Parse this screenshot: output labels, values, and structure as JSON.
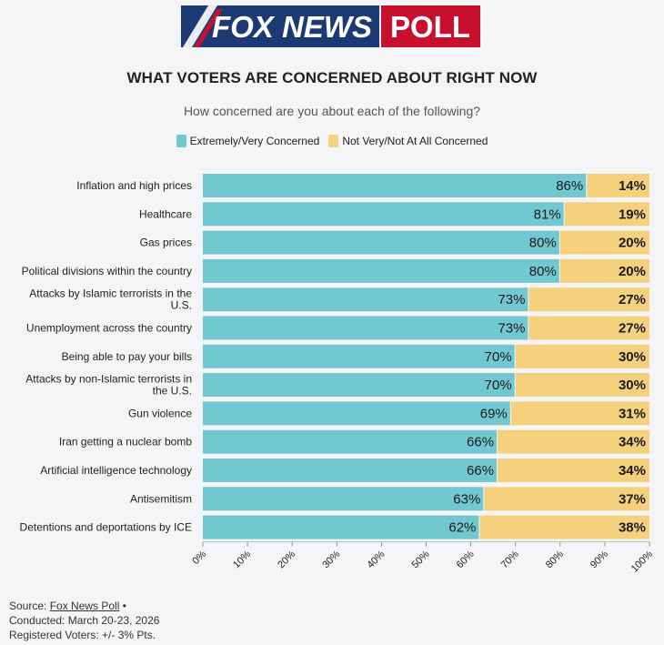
{
  "header": {
    "logo_left": "FOX NEWS",
    "logo_right": "POLL",
    "title": "WHAT VOTERS ARE CONCERNED ABOUT RIGHT NOW",
    "subtitle": "How concerned are you about each of the following?"
  },
  "legend": [
    {
      "label": "Extremely/Very Concerned",
      "color": "#72c8d1"
    },
    {
      "label": "Not Very/Not At All Concerned",
      "color": "#f5d17e"
    }
  ],
  "chart_data": {
    "type": "bar",
    "orientation": "horizontal",
    "stacked": true,
    "categories": [
      [
        "Inflation and high prices"
      ],
      [
        "Healthcare"
      ],
      [
        "Gas prices"
      ],
      [
        "Political divisions within the country"
      ],
      [
        "Attacks by Islamic terrorists in the",
        "U.S."
      ],
      [
        "Unemployment across the country"
      ],
      [
        "Being able to pay your bills"
      ],
      [
        "Attacks by non-Islamic terrorists in",
        "the U.S."
      ],
      [
        "Gun violence"
      ],
      [
        "Iran getting a nuclear bomb"
      ],
      [
        "Artificial intelligence technology"
      ],
      [
        "Antisemitism"
      ],
      [
        "Detentions and deportations by ICE"
      ]
    ],
    "series": [
      {
        "name": "Extremely/Very Concerned",
        "color": "#72c8d1",
        "values": [
          86,
          81,
          80,
          80,
          73,
          73,
          70,
          70,
          69,
          66,
          66,
          63,
          62
        ]
      },
      {
        "name": "Not Very/Not At All Concerned",
        "color": "#f5d17e",
        "values": [
          14,
          19,
          20,
          20,
          27,
          27,
          30,
          30,
          31,
          34,
          34,
          37,
          38
        ]
      }
    ],
    "value_suffix": "%",
    "xlim": [
      0,
      100
    ],
    "xticks": [
      "0%",
      "10%",
      "20%",
      "30%",
      "40%",
      "50%",
      "60%",
      "70%",
      "80%",
      "90%",
      "100%"
    ],
    "grid": false,
    "legend_position": "top"
  },
  "footer": {
    "source_prefix": "Source: ",
    "source_link": "Fox News Poll",
    "source_suffix": " •",
    "conducted": "Conducted: March 20-23, 2026",
    "margin": "Registered Voters: +/- 3% Pts."
  }
}
